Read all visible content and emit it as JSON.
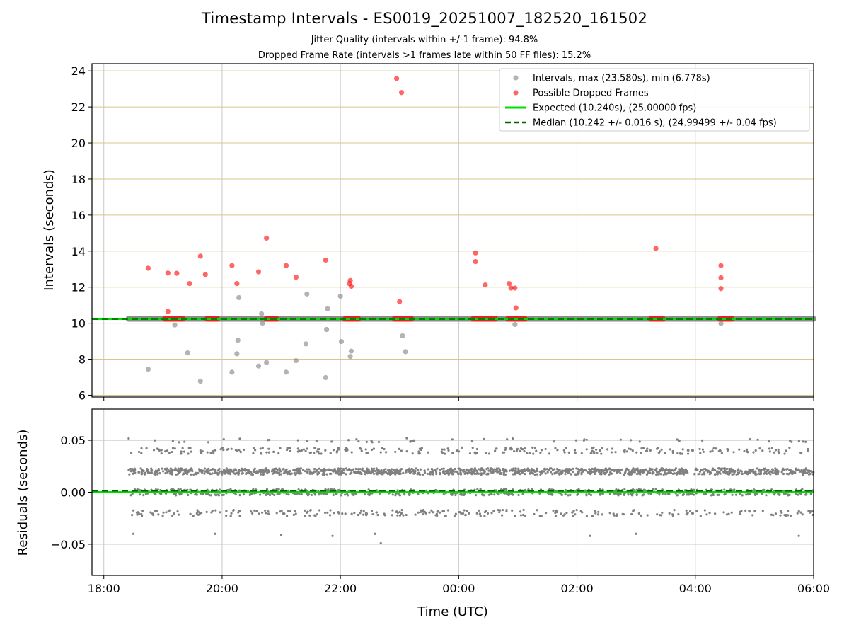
{
  "title": "Timestamp Intervals - ES0019_20251007_182520_161502",
  "subtitle_jitter": "Jitter Quality (intervals within +/-1 frame): 94.8%",
  "subtitle_dropped": "Dropped Frame Rate (intervals >1 frames late within 50 FF files): 15.2%",
  "colors": {
    "intervals": "#808080",
    "dropped": "#ff0000",
    "expected": "#00e000",
    "median": "#006400",
    "hgrid_top": "#d6c78c",
    "grid": "#c8c8c8"
  },
  "chart_data": [
    {
      "type": "scatter",
      "panel": "intervals",
      "xlabel": "",
      "ylabel": "Intervals (seconds)",
      "xlim": [
        "2025-10-07 17:48",
        "2025-10-08 06:00"
      ],
      "ylim": [
        5.9,
        24.4
      ],
      "x_ticks": [
        "18:00",
        "20:00",
        "22:00",
        "00:00",
        "02:00",
        "04:00",
        "06:00"
      ],
      "y_ticks": [
        6,
        8,
        10,
        12,
        14,
        16,
        18,
        20,
        22,
        24
      ],
      "legend_position": "upper-right",
      "legend": [
        {
          "label": "Intervals, max (23.580s), min (6.778s)",
          "marker": "dot",
          "color": "#808080"
        },
        {
          "label": "Possible Dropped Frames",
          "marker": "dot",
          "color": "#ff0000"
        },
        {
          "label": "Expected (10.240s), (25.00000 fps)",
          "marker": "solid-line",
          "color": "#00e000"
        },
        {
          "label": "Median (10.242 +/- 0.016 s), (24.99499 +/- 0.04 fps)",
          "marker": "dashed-line",
          "color": "#006400"
        }
      ],
      "reference_lines": {
        "expected": 10.24,
        "median": 10.242
      },
      "baseline_band": {
        "start": "2025-10-07 18:25",
        "end": "2025-10-08 06:00",
        "value": 10.242
      },
      "intervals_outliers": [
        [
          "2025-10-07 18:45",
          7.45
        ],
        [
          "2025-10-07 19:12",
          9.9
        ],
        [
          "2025-10-07 19:25",
          8.35
        ],
        [
          "2025-10-07 19:38",
          6.78
        ],
        [
          "2025-10-07 20:10",
          7.28
        ],
        [
          "2025-10-07 20:15",
          8.3
        ],
        [
          "2025-10-07 20:16",
          9.05
        ],
        [
          "2025-10-07 20:17",
          11.42
        ],
        [
          "2025-10-07 20:37",
          7.62
        ],
        [
          "2025-10-07 20:40",
          10.52
        ],
        [
          "2025-10-07 20:41",
          10.0
        ],
        [
          "2025-10-07 20:45",
          7.82
        ],
        [
          "2025-10-07 21:05",
          7.28
        ],
        [
          "2025-10-07 21:15",
          7.92
        ],
        [
          "2025-10-07 21:25",
          8.85
        ],
        [
          "2025-10-07 21:26",
          11.62
        ],
        [
          "2025-10-07 21:45",
          6.98
        ],
        [
          "2025-10-07 21:46",
          9.65
        ],
        [
          "2025-10-07 21:47",
          10.8
        ],
        [
          "2025-10-07 22:00",
          11.5
        ],
        [
          "2025-10-07 22:01",
          8.98
        ],
        [
          "2025-10-07 22:10",
          8.15
        ],
        [
          "2025-10-07 22:11",
          8.45
        ],
        [
          "2025-10-07 23:03",
          9.3
        ],
        [
          "2025-10-07 23:06",
          8.42
        ],
        [
          "2025-10-08 00:57",
          9.93
        ],
        [
          "2025-10-08 04:26",
          9.98
        ]
      ],
      "dropped_frames": [
        [
          "2025-10-07 18:45",
          13.05
        ],
        [
          "2025-10-07 19:05",
          12.78
        ],
        [
          "2025-10-07 19:05",
          10.65
        ],
        [
          "2025-10-07 19:14",
          12.77
        ],
        [
          "2025-10-07 19:27",
          12.2
        ],
        [
          "2025-10-07 19:38",
          13.72
        ],
        [
          "2025-10-07 19:43",
          12.7
        ],
        [
          "2025-10-07 20:10",
          13.2
        ],
        [
          "2025-10-07 20:15",
          12.2
        ],
        [
          "2025-10-07 20:37",
          12.85
        ],
        [
          "2025-10-07 20:45",
          14.72
        ],
        [
          "2025-10-07 21:05",
          13.2
        ],
        [
          "2025-10-07 21:15",
          12.55
        ],
        [
          "2025-10-07 21:45",
          13.5
        ],
        [
          "2025-10-07 22:09",
          12.2
        ],
        [
          "2025-10-07 22:10",
          12.37
        ],
        [
          "2025-10-07 22:11",
          12.05
        ],
        [
          "2025-10-07 22:57",
          23.58
        ],
        [
          "2025-10-07 23:02",
          22.8
        ],
        [
          "2025-10-07 23:00",
          11.2
        ],
        [
          "2025-10-08 00:17",
          13.9
        ],
        [
          "2025-10-08 00:17",
          13.42
        ],
        [
          "2025-10-08 00:27",
          12.12
        ],
        [
          "2025-10-08 00:51",
          12.2
        ],
        [
          "2025-10-08 00:53",
          11.95
        ],
        [
          "2025-10-08 00:57",
          11.95
        ],
        [
          "2025-10-08 00:58",
          10.85
        ],
        [
          "2025-10-08 03:20",
          14.15
        ],
        [
          "2025-10-08 04:26",
          13.2
        ],
        [
          "2025-10-08 04:26",
          12.52
        ],
        [
          "2025-10-08 04:26",
          11.92
        ]
      ],
      "dropped_clusters": [
        [
          "2025-10-07 19:02",
          "2025-10-07 19:20"
        ],
        [
          "2025-10-07 19:45",
          "2025-10-07 19:55"
        ],
        [
          "2025-10-07 20:45",
          "2025-10-07 20:55"
        ],
        [
          "2025-10-07 22:05",
          "2025-10-07 22:18"
        ],
        [
          "2025-10-07 22:55",
          "2025-10-07 23:12"
        ],
        [
          "2025-10-08 00:15",
          "2025-10-08 00:37"
        ],
        [
          "2025-10-08 00:50",
          "2025-10-08 01:07"
        ],
        [
          "2025-10-08 03:15",
          "2025-10-08 03:27"
        ],
        [
          "2025-10-08 04:25",
          "2025-10-08 04:37"
        ]
      ]
    },
    {
      "type": "scatter",
      "panel": "residuals",
      "xlabel": "Time (UTC)",
      "ylabel": "Residuals (seconds)",
      "xlim": [
        "2025-10-07 17:48",
        "2025-10-08 06:00"
      ],
      "ylim": [
        -0.08,
        0.08
      ],
      "x_ticks": [
        "18:00",
        "20:00",
        "22:00",
        "00:00",
        "02:00",
        "04:00",
        "06:00"
      ],
      "y_ticks": [
        0.05,
        0.0,
        -0.05
      ],
      "y_tick_labels": [
        "0.05",
        "0.00",
        "−0.05"
      ],
      "reference_lines": {
        "expected": 0.0,
        "median": 0.0015
      },
      "residual_bands": [
        {
          "value": 0.02,
          "spread": 0.003,
          "weight": 0.46
        },
        {
          "value": 0.0,
          "spread": 0.003,
          "weight": 0.26
        },
        {
          "value": 0.04,
          "spread": 0.003,
          "weight": 0.11
        },
        {
          "value": -0.02,
          "spread": 0.003,
          "weight": 0.11
        },
        {
          "value": 0.05,
          "spread": 0.002,
          "weight": 0.02
        }
      ],
      "residual_points_start": "2025-10-07 18:25",
      "residual_points_end": "2025-10-08 06:00",
      "residual_points_count": 2600,
      "residual_extremes": [
        [
          "2025-10-07 18:30",
          -0.04
        ],
        [
          "2025-10-07 19:53",
          -0.04
        ],
        [
          "2025-10-07 21:00",
          -0.041
        ],
        [
          "2025-10-07 21:52",
          -0.042
        ],
        [
          "2025-10-07 22:35",
          -0.04
        ],
        [
          "2025-10-07 22:41",
          -0.049
        ],
        [
          "2025-10-08 02:13",
          -0.042
        ],
        [
          "2025-10-08 03:00",
          -0.04
        ],
        [
          "2025-10-08 05:45",
          -0.042
        ]
      ]
    }
  ]
}
